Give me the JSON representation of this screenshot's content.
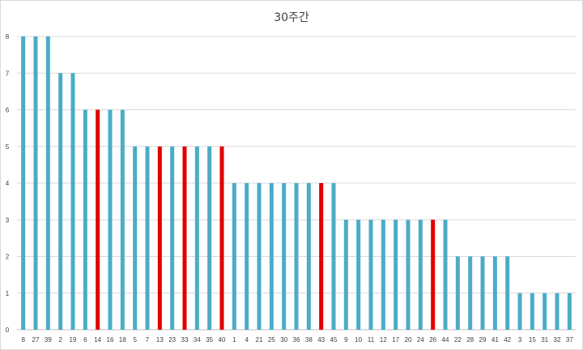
{
  "chart_data": {
    "type": "bar",
    "title": "30주간",
    "xlabel": "",
    "ylabel": "",
    "ylim": [
      0,
      8
    ],
    "yticks": [
      0,
      1,
      2,
      3,
      4,
      5,
      6,
      7,
      8
    ],
    "grid": true,
    "legend": "none",
    "categories": [
      "8",
      "27",
      "39",
      "2",
      "19",
      "6",
      "14",
      "16",
      "18",
      "5",
      "7",
      "13",
      "23",
      "33",
      "34",
      "35",
      "40",
      "1",
      "4",
      "21",
      "25",
      "30",
      "36",
      "38",
      "43",
      "45",
      "9",
      "10",
      "11",
      "12",
      "17",
      "20",
      "24",
      "26",
      "44",
      "22",
      "28",
      "29",
      "41",
      "42",
      "3",
      "15",
      "31",
      "32",
      "37"
    ],
    "values": [
      8,
      8,
      8,
      7,
      7,
      6,
      6,
      6,
      6,
      5,
      5,
      5,
      5,
      5,
      5,
      5,
      5,
      4,
      4,
      4,
      4,
      4,
      4,
      4,
      4,
      4,
      3,
      3,
      3,
      3,
      3,
      3,
      3,
      3,
      3,
      2,
      2,
      2,
      2,
      2,
      1,
      1,
      1,
      1,
      1
    ],
    "highlighted": [
      "14",
      "13",
      "33",
      "40",
      "43",
      "26"
    ],
    "colors": {
      "bar": "#4bacc6",
      "highlight": "#e00000",
      "grid": "#d9d9d9",
      "axis": "#bfbfbf"
    }
  }
}
